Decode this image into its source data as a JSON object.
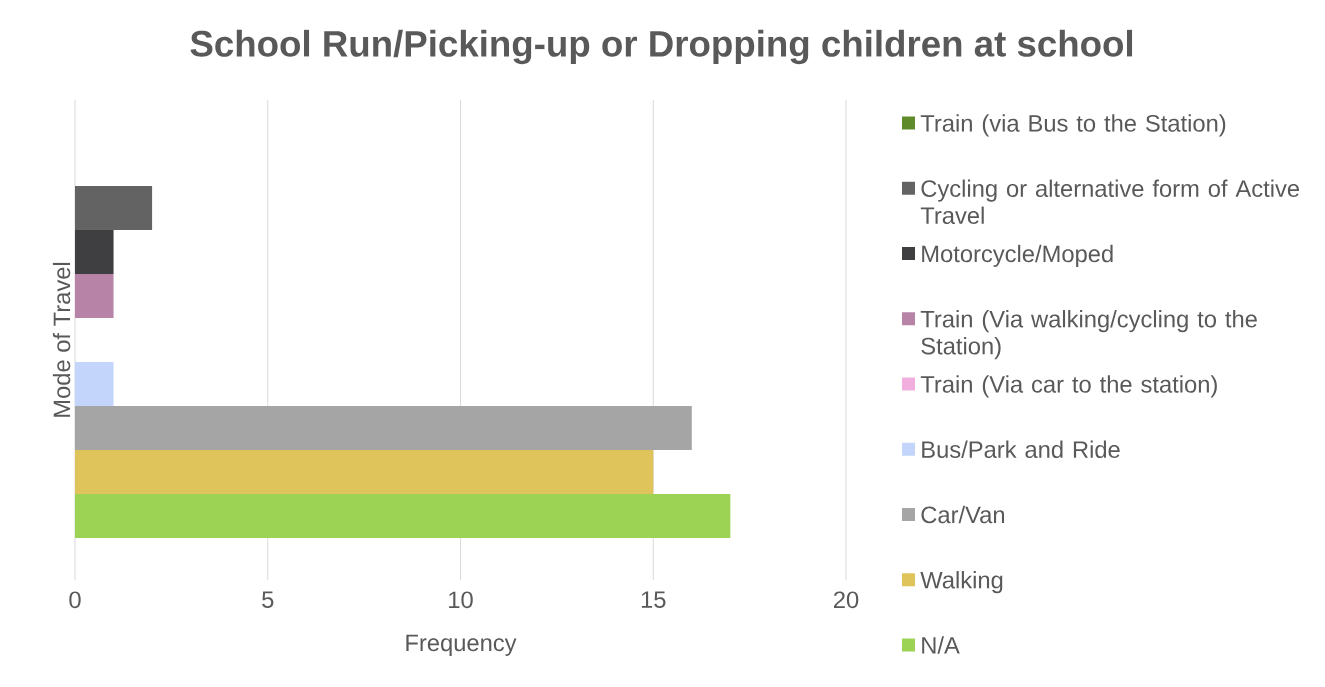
{
  "chart_data": {
    "type": "bar",
    "orientation": "horizontal",
    "title": "School Run/Picking-up or Dropping children at school",
    "xlabel": "Frequency",
    "ylabel": "Mode of Travel",
    "categories": [
      null
    ],
    "series": [
      {
        "name": "Train (via Bus to the Station)",
        "color": "#5f8b2a",
        "values": [
          0
        ]
      },
      {
        "name": "Cycling or alternative form of Active Travel",
        "color": "#636363",
        "values": [
          2
        ]
      },
      {
        "name": "Motorcycle/Moped",
        "color": "#3f3f41",
        "values": [
          1
        ]
      },
      {
        "name": "Train (Via walking/cycling to the Station)",
        "color": "#b784a7",
        "values": [
          1
        ]
      },
      {
        "name": "Train (Via car to the station)",
        "color": "#f2afdd",
        "values": [
          0
        ]
      },
      {
        "name": "Bus/Park and Ride",
        "color": "#c3d5fb",
        "values": [
          1
        ]
      },
      {
        "name": "Car/Van",
        "color": "#a5a5a5",
        "values": [
          16
        ]
      },
      {
        "name": "Walking",
        "color": "#dec45a",
        "values": [
          15
        ]
      },
      {
        "name": "N/A",
        "color": "#9dd354",
        "values": [
          17
        ]
      }
    ],
    "xlim": [
      0,
      20
    ],
    "xticks": [
      0,
      5,
      10,
      15,
      20
    ],
    "grid": "x",
    "legend": "right"
  }
}
